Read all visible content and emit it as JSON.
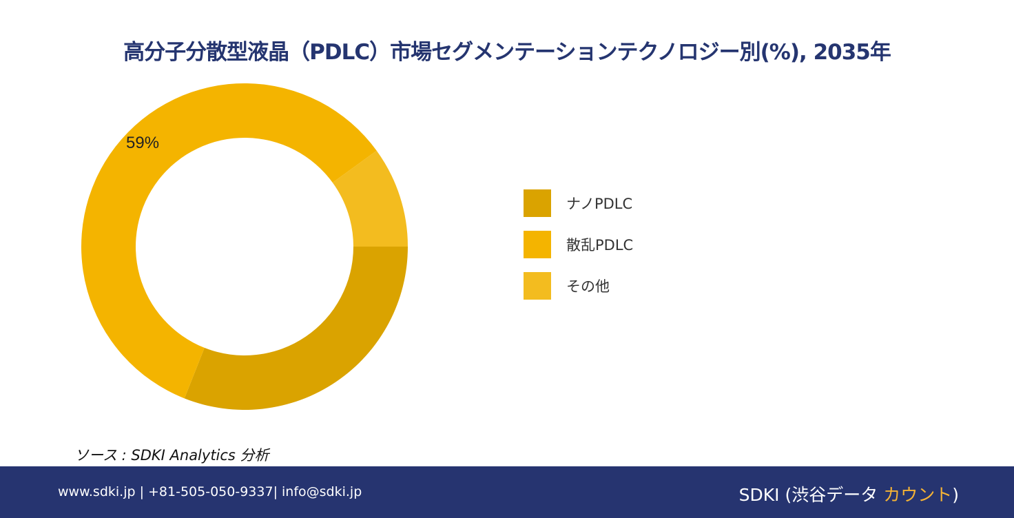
{
  "title": "高分子分散型液晶（PDLC）市場セグメンテーションテクノロジー別(%), 2035年",
  "chart_data": {
    "type": "pie",
    "donut": true,
    "title": "高分子分散型液晶（PDLC）市場セグメンテーションテクノロジー別(%), 2035年",
    "categories": [
      "ナノPDLC",
      "散乱PDLC",
      "その他"
    ],
    "values": [
      31,
      59,
      10
    ],
    "colors": [
      "#DAA300",
      "#F4B400",
      "#F3BC1F"
    ],
    "data_labels": [
      "",
      "59%",
      ""
    ],
    "legend": "right"
  },
  "source": "ソース : SDKI Analytics 分析",
  "footer": {
    "contact": "www.sdki.jp | +81-505-050-9337| info@sdki.jp",
    "brand_main": "SDKI (渋谷データ ",
    "brand_accent": "カウント",
    "brand_end": ")"
  }
}
